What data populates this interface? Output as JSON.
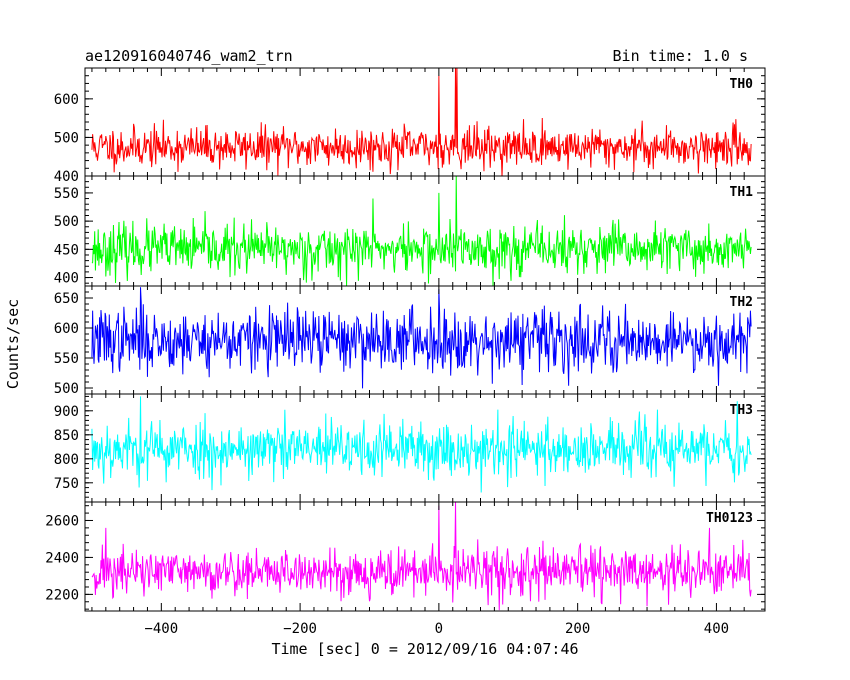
{
  "chart_data": {
    "type": "line",
    "title": "ae120916040746_wam2_trn",
    "subtitle": "Bin time: 1.0 s",
    "xlabel": "Time [sec] 0 = 2012/09/16 04:07:46",
    "ylabel": "Counts/sec",
    "xlim": [
      -510,
      470
    ],
    "x_ticks": [
      -400,
      -200,
      0,
      200,
      400
    ],
    "x_range": [
      -500,
      450
    ],
    "bin": 1.0,
    "grid": false,
    "panels": [
      {
        "name": "TH0",
        "color": "#ff0000",
        "ylim": [
          400,
          680
        ],
        "y_ticks": [
          400,
          500,
          600
        ],
        "mean": 475,
        "spread": 26,
        "seed": 11,
        "features": [
          {
            "x": 0,
            "value": 660
          },
          {
            "x": 24,
            "value": 690
          },
          {
            "x": 26,
            "value": 690
          }
        ]
      },
      {
        "name": "TH1",
        "color": "#00ff00",
        "ylim": [
          385,
          580
        ],
        "y_ticks": [
          400,
          450,
          500,
          550
        ],
        "mean": 450,
        "spread": 22,
        "seed": 23,
        "features": [
          {
            "x": -95,
            "value": 540
          },
          {
            "x": 0,
            "value": 550
          },
          {
            "x": 25,
            "value": 580
          }
        ]
      },
      {
        "name": "TH2",
        "color": "#0000ff",
        "ylim": [
          490,
          670
        ],
        "y_ticks": [
          500,
          550,
          600,
          650
        ],
        "mean": 580,
        "spread": 26,
        "seed": 37,
        "features": [
          {
            "x": -430,
            "value": 668
          },
          {
            "x": 0,
            "value": 665
          },
          {
            "x": 120,
            "value": 505
          }
        ]
      },
      {
        "name": "TH3",
        "color": "#00ffff",
        "ylim": [
          710,
          935
        ],
        "y_ticks": [
          750,
          800,
          850,
          900
        ],
        "mean": 820,
        "spread": 30,
        "seed": 53,
        "features": [
          {
            "x": -430,
            "value": 930
          },
          {
            "x": 430,
            "value": 920
          }
        ]
      },
      {
        "name": "TH0123",
        "color": "#ff00ff",
        "ylim": [
          2110,
          2700
        ],
        "y_ticks": [
          2200,
          2400,
          2600
        ],
        "mean": 2320,
        "spread": 65,
        "seed": 71,
        "features": [
          {
            "x": -480,
            "value": 2560
          },
          {
            "x": 0,
            "value": 2680
          },
          {
            "x": 24,
            "value": 2700
          },
          {
            "x": 390,
            "value": 2560
          }
        ]
      }
    ]
  }
}
